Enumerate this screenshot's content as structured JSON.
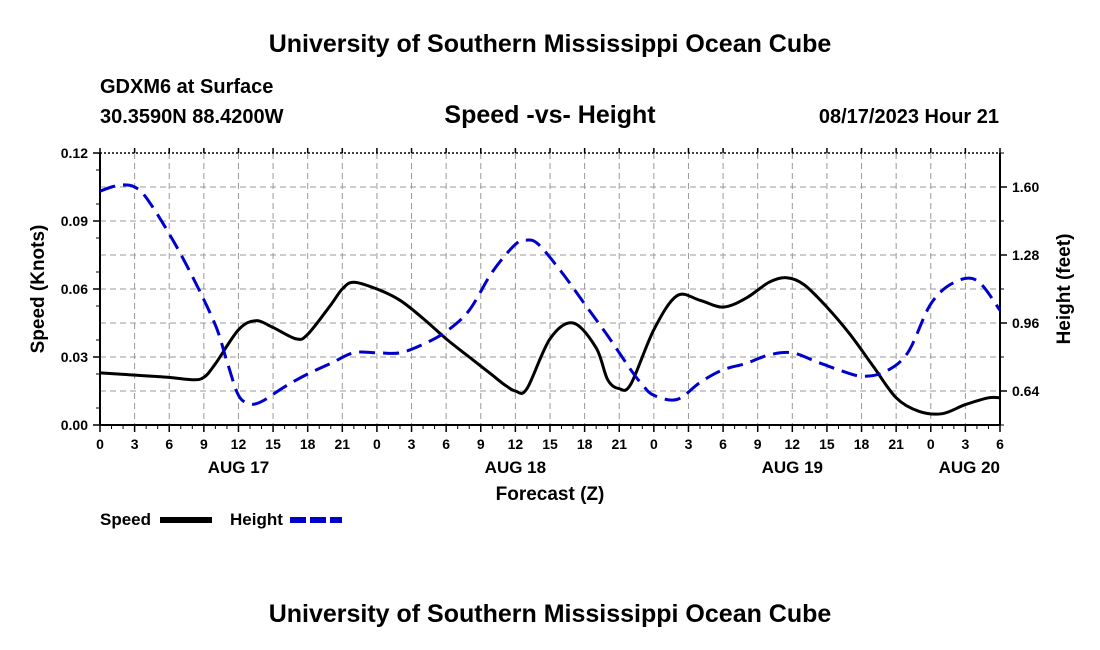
{
  "header": {
    "title": "University of Southern Mississippi Ocean Cube",
    "station": "GDXM6 at Surface",
    "coords": "30.3590N  88.4200W",
    "run_time": "08/17/2023 Hour 21"
  },
  "footer": {
    "title": "University of Southern Mississippi Ocean Cube"
  },
  "colors": {
    "speed": "#000000",
    "height": "#0000cc",
    "grid": "#999999"
  },
  "chart_data": {
    "type": "line",
    "title": "Speed -vs- Height",
    "xlabel": "Forecast (Z)",
    "ylabel": "Speed (Knots)",
    "y2label": "Height (feet)",
    "x_hours_from_aug17_00z": [
      0,
      78
    ],
    "x_tick_labels": [
      "0",
      "3",
      "6",
      "9",
      "12",
      "15",
      "18",
      "21",
      "0",
      "3",
      "6",
      "9",
      "12",
      "15",
      "18",
      "21",
      "0",
      "3",
      "6",
      "9",
      "12",
      "15",
      "18",
      "21",
      "0",
      "3",
      "6"
    ],
    "date_labels": [
      {
        "label": "AUG 17",
        "hour": 12
      },
      {
        "label": "AUG 18",
        "hour": 36
      },
      {
        "label": "AUG 19",
        "hour": 60
      },
      {
        "label": "AUG 20",
        "hour": 78
      }
    ],
    "ylim": [
      0,
      0.12
    ],
    "yticks": [
      "0.00",
      "0.03",
      "0.06",
      "0.09",
      "0.12"
    ],
    "y2lim": [
      0.48,
      1.76
    ],
    "y2ticks": [
      "0.64",
      "0.96",
      "1.28",
      "1.60"
    ],
    "grid": true,
    "legend": "bottom-left",
    "series": [
      {
        "name": "Speed",
        "axis": "left",
        "style": "solid",
        "x": [
          0,
          3,
          6,
          8,
          9,
          10,
          12,
          13.5,
          15,
          17,
          18,
          20,
          21,
          22,
          24,
          26,
          28,
          30,
          32,
          34,
          35,
          36,
          37,
          39,
          41,
          43,
          44,
          45,
          46,
          48,
          50,
          52,
          54,
          56,
          58,
          59.5,
          61,
          63,
          65,
          67,
          69,
          71,
          73,
          75,
          77,
          78
        ],
        "values": [
          0.023,
          0.022,
          0.021,
          0.02,
          0.021,
          0.027,
          0.042,
          0.046,
          0.043,
          0.038,
          0.04,
          0.053,
          0.06,
          0.063,
          0.06,
          0.055,
          0.047,
          0.038,
          0.03,
          0.022,
          0.018,
          0.015,
          0.016,
          0.038,
          0.045,
          0.034,
          0.02,
          0.016,
          0.018,
          0.042,
          0.057,
          0.055,
          0.052,
          0.056,
          0.063,
          0.065,
          0.062,
          0.052,
          0.04,
          0.026,
          0.012,
          0.006,
          0.005,
          0.009,
          0.012,
          0.012
        ]
      },
      {
        "name": "Height",
        "axis": "right",
        "style": "dashed",
        "x": [
          0,
          1,
          2,
          3,
          4,
          6,
          8,
          10,
          11,
          12,
          13,
          14,
          16,
          18,
          20,
          22,
          24,
          26,
          28,
          30,
          32,
          34,
          36,
          37,
          38,
          40,
          42,
          44,
          46,
          47,
          48,
          50,
          52,
          54,
          56,
          58,
          60,
          62,
          64,
          66,
          68,
          70,
          72,
          74,
          76,
          78
        ],
        "values": [
          1.58,
          1.6,
          1.61,
          1.6,
          1.55,
          1.38,
          1.18,
          0.95,
          0.78,
          0.62,
          0.58,
          0.59,
          0.66,
          0.72,
          0.77,
          0.82,
          0.82,
          0.82,
          0.86,
          0.92,
          1.02,
          1.2,
          1.33,
          1.35,
          1.33,
          1.2,
          1.05,
          0.9,
          0.74,
          0.67,
          0.62,
          0.6,
          0.68,
          0.74,
          0.77,
          0.81,
          0.82,
          0.78,
          0.74,
          0.71,
          0.73,
          0.82,
          1.05,
          1.15,
          1.16,
          1.02
        ]
      }
    ]
  }
}
